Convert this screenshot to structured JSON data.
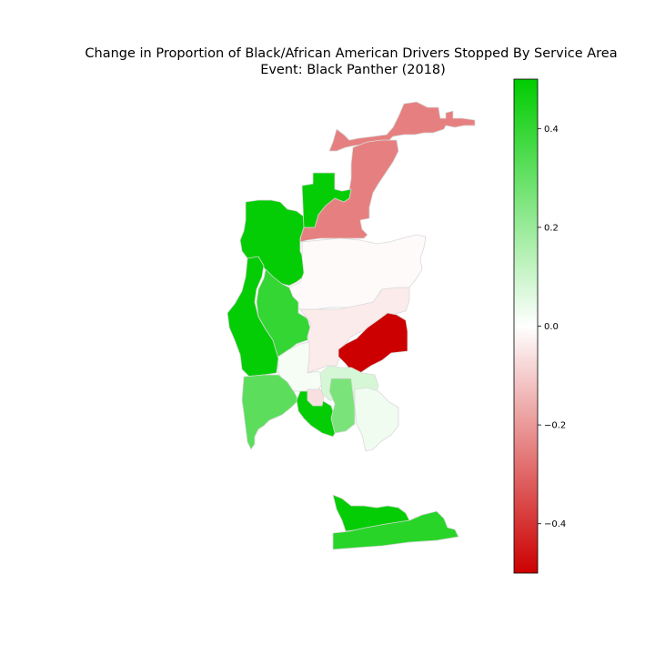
{
  "title_line1": "Change in Proportion of Black/African American Drivers Stopped By Service Area",
  "title_line2": "Event: Black Panther (2018)",
  "colorbar": {
    "min": -0.5,
    "max": 0.5,
    "ticks": [
      {
        "value": 0.4,
        "label": "0.4"
      },
      {
        "value": 0.2,
        "label": "0.2"
      },
      {
        "value": 0.0,
        "label": "0.0"
      },
      {
        "value": -0.2,
        "label": "−0.2"
      },
      {
        "value": -0.4,
        "label": "−0.4"
      }
    ],
    "colors": {
      "negative": "#cc0000",
      "zero": "#ffffff",
      "positive": "#00cc00"
    }
  },
  "map_data": {
    "regions": [
      {
        "id": "north-east-upper",
        "value": -0.25
      },
      {
        "id": "north-east-corridor",
        "value": -0.25
      },
      {
        "id": "north-west-coast",
        "value": 0.49
      },
      {
        "id": "north-central",
        "value": 0.49
      },
      {
        "id": "central-large",
        "value": -0.01
      },
      {
        "id": "mid-west-coast",
        "value": 0.49
      },
      {
        "id": "mid-inland-west",
        "value": 0.4
      },
      {
        "id": "mid-east",
        "value": -0.04
      },
      {
        "id": "east-red",
        "value": -0.5
      },
      {
        "id": "central-small",
        "value": 0.02
      },
      {
        "id": "south-west-coast",
        "value": 0.32
      },
      {
        "id": "downtown",
        "value": 0.49
      },
      {
        "id": "city-heights",
        "value": 0.08
      },
      {
        "id": "mid-city-pink",
        "value": -0.06
      },
      {
        "id": "south-east-green",
        "value": 0.26
      },
      {
        "id": "southeast-pale",
        "value": 0.03
      },
      {
        "id": "south-upper",
        "value": 0.49
      },
      {
        "id": "south-lower",
        "value": 0.42
      }
    ]
  }
}
